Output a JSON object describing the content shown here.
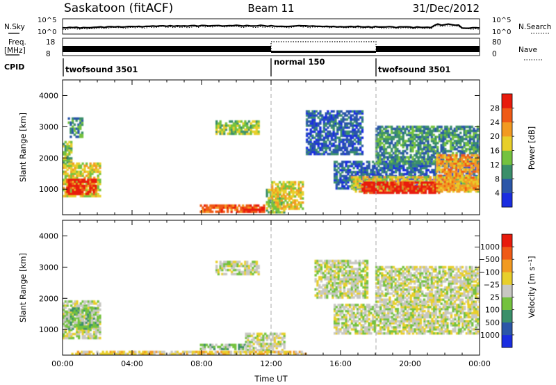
{
  "header": {
    "station": "Saskatoon (fitACF)",
    "beam": "Beam 11",
    "date": "31/Dec/2012"
  },
  "strips": {
    "nsky_label": "N.Sky",
    "nsky_ticks": [
      "10^5",
      "10^0"
    ],
    "nsearch_label": "N.Search",
    "nsearch_ticks": [
      "10^5",
      "10^0"
    ],
    "freq_label": "Freq.",
    "freq_unit": "[MHz]",
    "freq_ticks": [
      "18",
      "8"
    ],
    "nave_label": "Nave",
    "nave_ticks": [
      "80",
      "0"
    ],
    "cpid_label": "CPID",
    "cpid_segments": [
      {
        "name": "twofsound 3501",
        "start_hour": 0,
        "end_hour": 12
      },
      {
        "name": "normal 150",
        "start_hour": 12,
        "end_hour": 18
      },
      {
        "name": "twofsound 3501",
        "start_hour": 18,
        "end_hour": 24
      }
    ]
  },
  "chart_data": [
    {
      "type": "heatmap",
      "parameter": "power",
      "ylabel": "Slant Range [km]",
      "ylim": [
        180,
        4500
      ],
      "yticks": [
        1000,
        2000,
        3000,
        4000
      ],
      "xlim_hours": [
        0,
        24
      ],
      "colorbar": {
        "label": "Power [dB]",
        "ticks": [
          "4",
          "8",
          "12",
          "16",
          "20",
          "24",
          "28"
        ],
        "colors": [
          "#1a2de0",
          "#2b56a8",
          "#3a8f6a",
          "#74c23e",
          "#e8cf2a",
          "#f29a21",
          "#ef5a16",
          "#e81b0c"
        ]
      },
      "regions": [
        {
          "t": [
            0.3,
            1.1
          ],
          "r": [
            2650,
            3250
          ],
          "level": 2
        },
        {
          "t": [
            0.0,
            0.5
          ],
          "r": [
            1700,
            2500
          ],
          "level": 3
        },
        {
          "t": [
            0.0,
            2.1
          ],
          "r": [
            750,
            1800
          ],
          "level": 4
        },
        {
          "t": [
            0.2,
            1.9
          ],
          "r": [
            820,
            1300
          ],
          "level": 7
        },
        {
          "t": [
            8.8,
            11.3
          ],
          "r": [
            2750,
            3150
          ],
          "level": 3
        },
        {
          "t": [
            7.9,
            11.6
          ],
          "r": [
            250,
            450
          ],
          "level": 6
        },
        {
          "t": [
            10.4,
            11.6
          ],
          "r": [
            250,
            380
          ],
          "level": 7
        },
        {
          "t": [
            11.7,
            12.7
          ],
          "r": [
            230,
            1000
          ],
          "level": 3
        },
        {
          "t": [
            12.0,
            13.8
          ],
          "r": [
            350,
            1200
          ],
          "level": 4
        },
        {
          "t": [
            14.0,
            17.2
          ],
          "r": [
            2100,
            3500
          ],
          "level": 1
        },
        {
          "t": [
            15.6,
            24.0
          ],
          "r": [
            1000,
            1900
          ],
          "level": 1
        },
        {
          "t": [
            16.6,
            24.0
          ],
          "r": [
            900,
            1400
          ],
          "level": 4
        },
        {
          "t": [
            17.2,
            21.7
          ],
          "r": [
            860,
            1200
          ],
          "level": 7
        },
        {
          "t": [
            18.0,
            24.0
          ],
          "r": [
            1800,
            3000
          ],
          "level": 2
        },
        {
          "t": [
            21.5,
            24.0
          ],
          "r": [
            950,
            2100
          ],
          "level": 5
        }
      ]
    },
    {
      "type": "heatmap",
      "parameter": "velocity",
      "ylabel": "Slant Range [km]",
      "ylim": [
        180,
        4500
      ],
      "yticks": [
        1000,
        2000,
        3000,
        4000
      ],
      "xlim_hours": [
        0,
        24
      ],
      "xticks": [
        "00:00",
        "04:00",
        "08:00",
        "12:00",
        "16:00",
        "20:00",
        "00:00"
      ],
      "xlabel": "Time UT",
      "colorbar": {
        "label": "Velocity [m s⁻¹]",
        "ticks": [
          "1000",
          "500",
          "100",
          "25",
          "−25",
          "−100",
          "−500",
          "−1000"
        ],
        "colors": [
          "#1a2de0",
          "#2b56a8",
          "#3a8f6a",
          "#74c23e",
          "#c8c8c2",
          "#e8cf2a",
          "#f29a21",
          "#ef5a16",
          "#e81b0c"
        ]
      },
      "regions": [
        {
          "t": [
            0.0,
            2.1
          ],
          "r": [
            700,
            1900
          ],
          "level": 4
        },
        {
          "t": [
            0.2,
            2.0
          ],
          "r": [
            1000,
            1700
          ],
          "level": 3
        },
        {
          "t": [
            8.8,
            11.3
          ],
          "r": [
            2750,
            3150
          ],
          "level": 4
        },
        {
          "t": [
            7.9,
            10.5
          ],
          "r": [
            350,
            500
          ],
          "level": 3
        },
        {
          "t": [
            10.5,
            12.8
          ],
          "r": [
            250,
            900
          ],
          "level": 4
        },
        {
          "t": [
            0.5,
            14.0
          ],
          "r": [
            190,
            300
          ],
          "level": 5
        },
        {
          "t": [
            15.6,
            24.0
          ],
          "r": [
            850,
            1800
          ],
          "level": 4
        },
        {
          "t": [
            14.5,
            17.5
          ],
          "r": [
            2000,
            3200
          ],
          "level": 4
        },
        {
          "t": [
            18.0,
            24.0
          ],
          "r": [
            1800,
            3000
          ],
          "level": 4
        }
      ]
    }
  ]
}
